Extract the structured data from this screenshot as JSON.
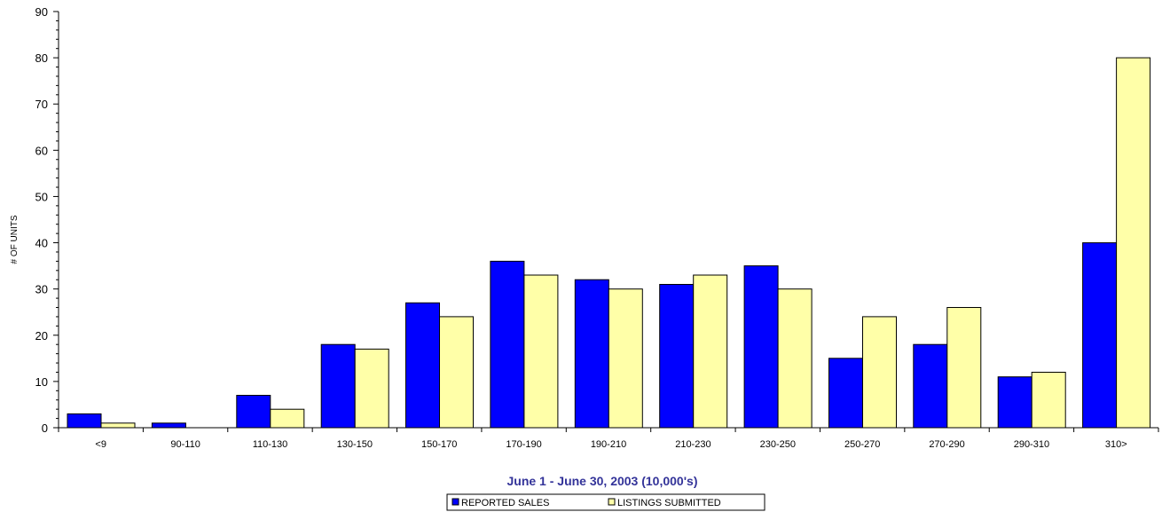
{
  "chart_data": {
    "type": "bar",
    "title": "",
    "xlabel": "June 1 - June 30, 2003 (10,000's)",
    "ylabel": "# OF UNITS",
    "ylim": [
      0,
      90
    ],
    "yticks": [
      0,
      10,
      20,
      30,
      40,
      50,
      60,
      70,
      80,
      90
    ],
    "grid": false,
    "legend_position": "bottom",
    "categories": [
      "<9",
      "90-110",
      "110-130",
      "130-150",
      "150-170",
      "170-190",
      "190-210",
      "210-230",
      "230-250",
      "250-270",
      "270-290",
      "290-310",
      "310>"
    ],
    "series": [
      {
        "name": "REPORTED SALES",
        "color": "#0000FF",
        "values": [
          3,
          1,
          7,
          18,
          27,
          36,
          32,
          31,
          35,
          15,
          18,
          11,
          40
        ]
      },
      {
        "name": "LISTINGS SUBMITTED",
        "color": "#FFFFA8",
        "values": [
          1,
          0,
          4,
          17,
          24,
          33,
          30,
          33,
          30,
          24,
          26,
          12,
          80
        ]
      }
    ],
    "xlabel_color": "#333399"
  }
}
